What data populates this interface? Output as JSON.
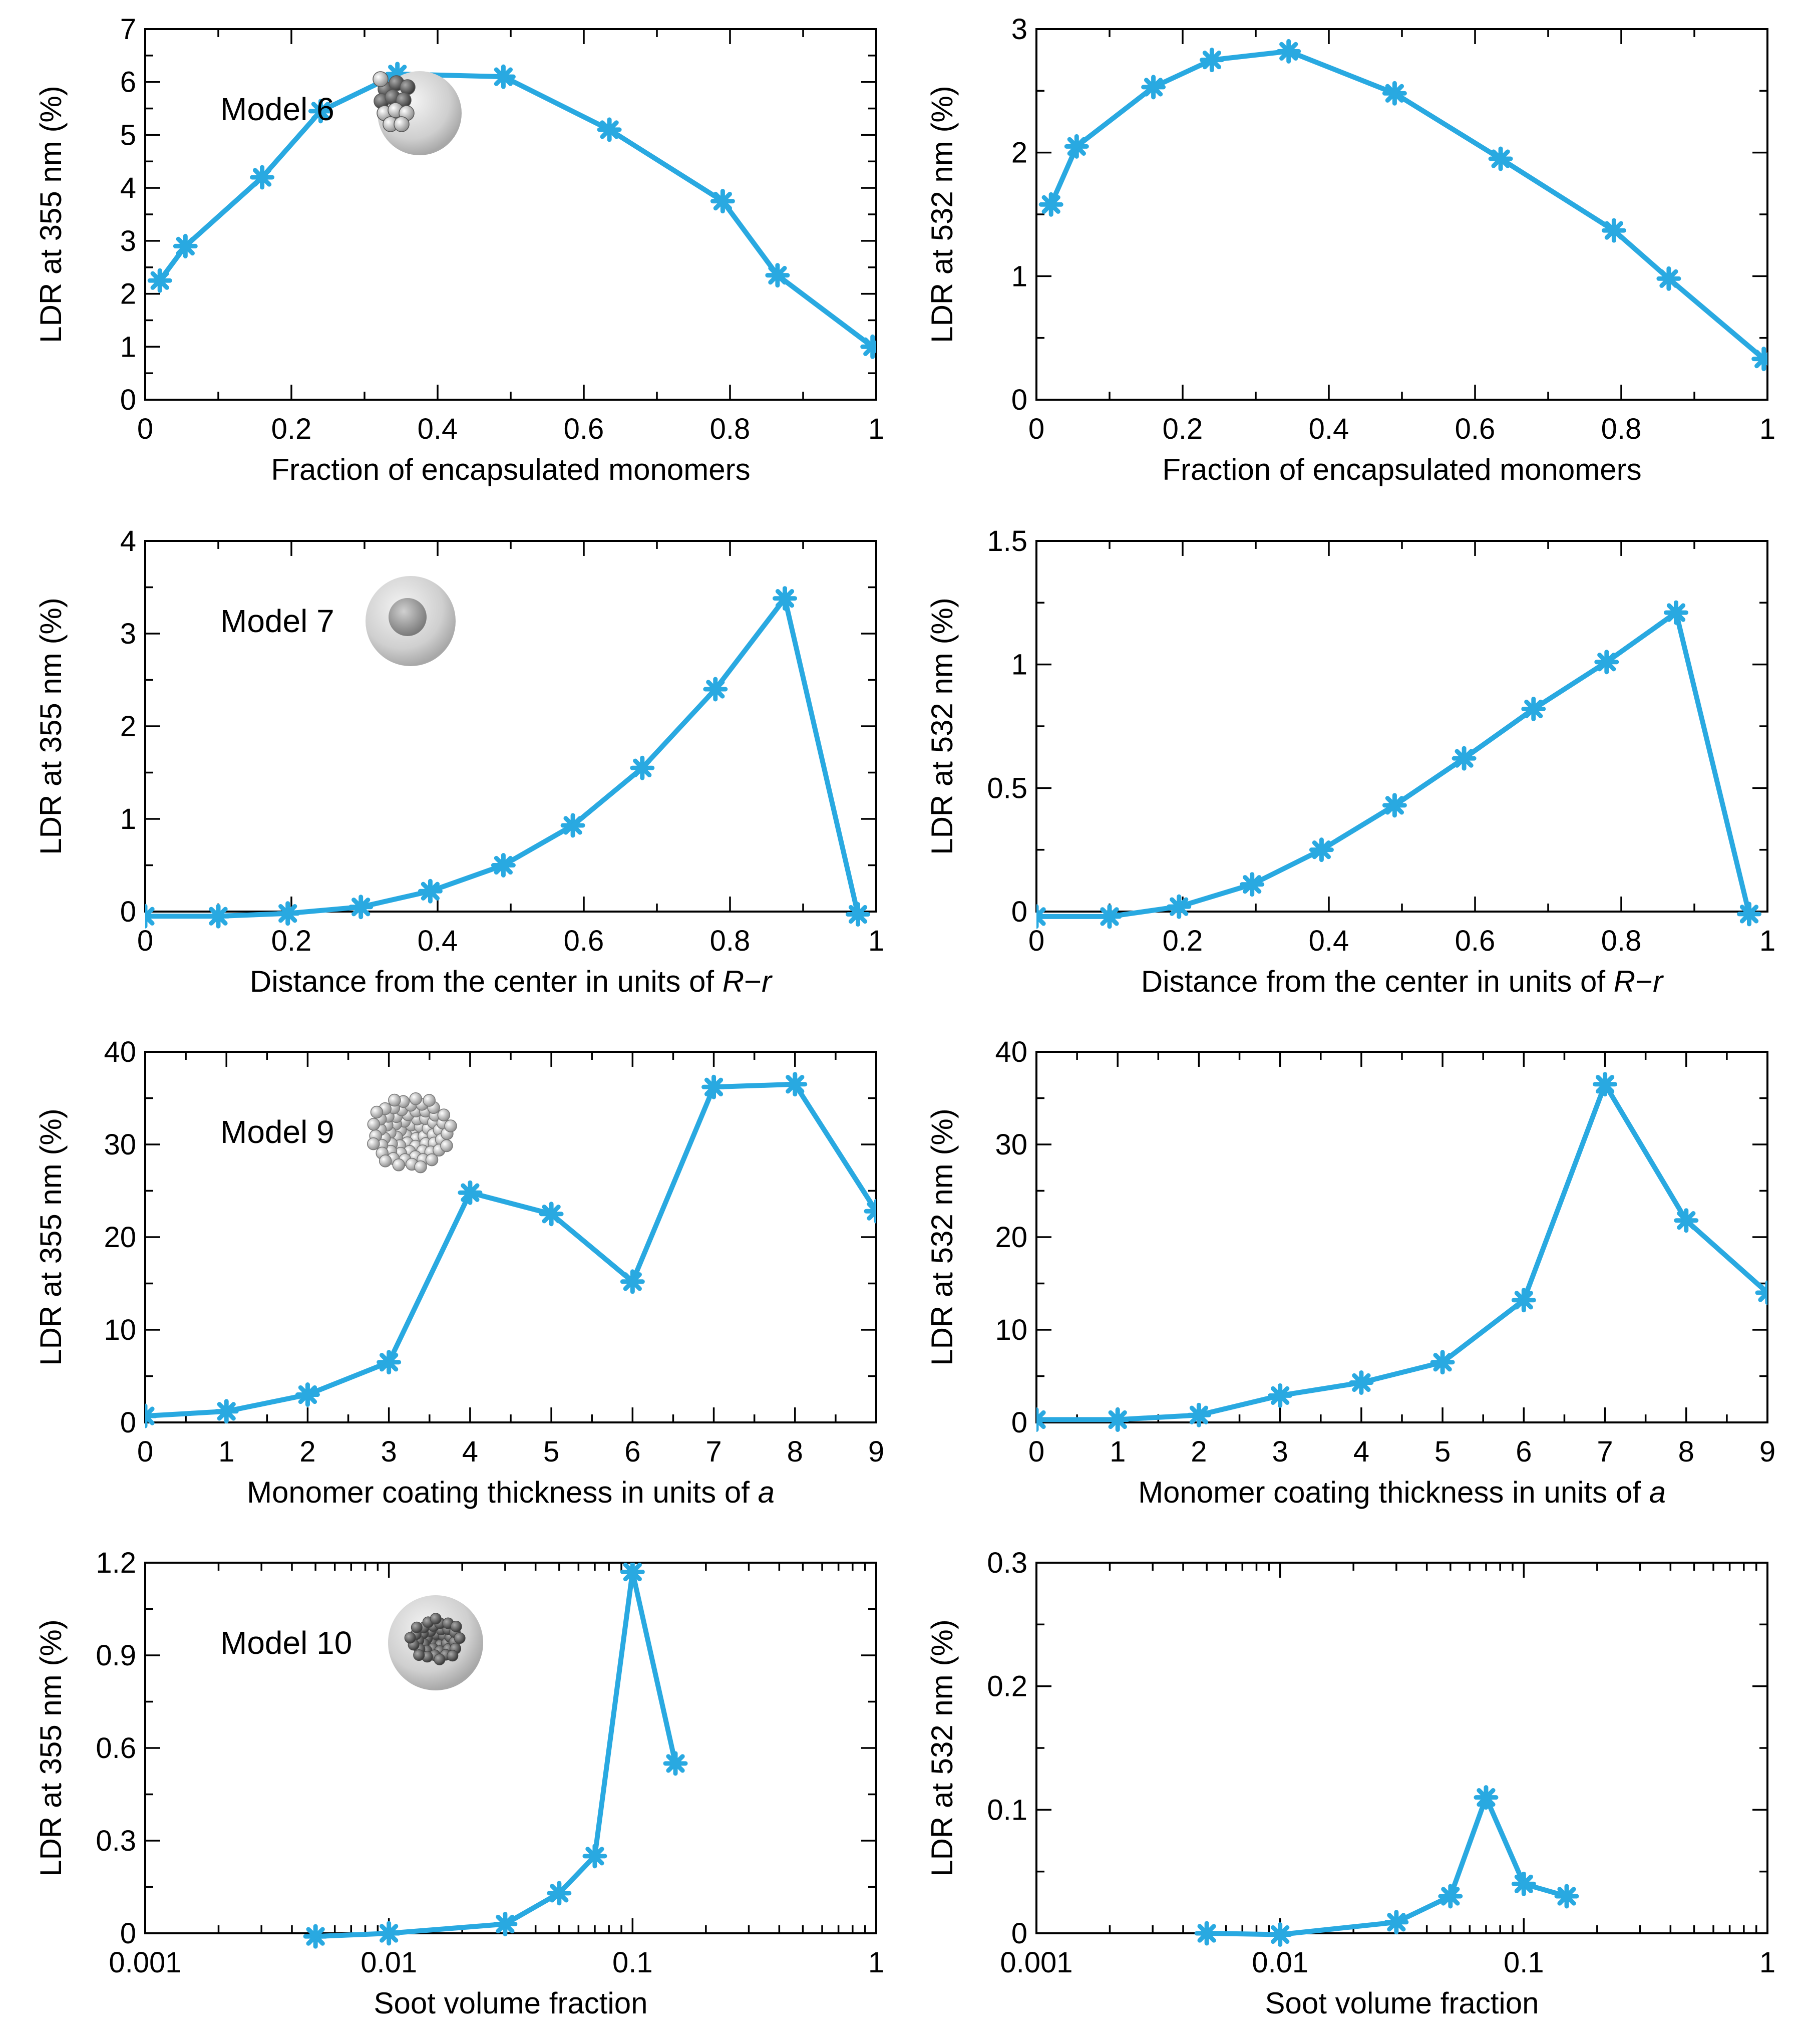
{
  "series_color": "#29a9e1",
  "chart_data": [
    {
      "type": "line",
      "panel": "row1-left",
      "xlabel": "Fraction of encapsulated monomers",
      "ylabel": "LDR at 355 nm (%)",
      "xscale": "linear",
      "xlim": [
        0,
        1
      ],
      "ylim": [
        0,
        7
      ],
      "xticks": [
        0,
        0.2,
        0.4,
        0.6,
        0.8,
        1
      ],
      "xticklabels": [
        "0",
        "0.2",
        "0.4",
        "0.6",
        "0.8",
        "1"
      ],
      "yticks": [
        0,
        1,
        2,
        3,
        4,
        5,
        6,
        7
      ],
      "yticklabels": [
        "0",
        "1",
        "2",
        "3",
        "4",
        "5",
        "6",
        "7"
      ],
      "model_label": "Model 6",
      "model_icon": "partially-encapsulated-sphere-icon",
      "x": [
        0.02,
        0.055,
        0.16,
        0.24,
        0.345,
        0.49,
        0.635,
        0.79,
        0.865,
        0.995
      ],
      "y": [
        2.25,
        2.9,
        4.2,
        5.45,
        6.15,
        6.1,
        5.1,
        3.75,
        2.35,
        1.0
      ]
    },
    {
      "type": "line",
      "panel": "row1-right",
      "xlabel": "Fraction of encapsulated monomers",
      "ylabel": "LDR at 532 nm (%)",
      "xscale": "linear",
      "xlim": [
        0,
        1
      ],
      "ylim": [
        0,
        3
      ],
      "xticks": [
        0,
        0.2,
        0.4,
        0.6,
        0.8,
        1
      ],
      "xticklabels": [
        "0",
        "0.2",
        "0.4",
        "0.6",
        "0.8",
        "1"
      ],
      "yticks": [
        0,
        1,
        2,
        3
      ],
      "yticklabels": [
        "0",
        "1",
        "2",
        "3"
      ],
      "x": [
        0.02,
        0.055,
        0.16,
        0.24,
        0.345,
        0.49,
        0.635,
        0.79,
        0.865,
        0.995
      ],
      "y": [
        1.58,
        2.05,
        2.53,
        2.75,
        2.82,
        2.48,
        1.95,
        1.37,
        0.98,
        0.33
      ]
    },
    {
      "type": "line",
      "panel": "row2-left",
      "xlabel": "Distance from the center in units of ",
      "xlabel_italic": "R",
      "xlabel_op": "−",
      "xlabel_italic2": "r",
      "ylabel": "LDR at 355 nm (%)",
      "xscale": "linear",
      "xlim": [
        0,
        1
      ],
      "ylim": [
        0,
        4
      ],
      "xticks": [
        0,
        0.2,
        0.4,
        0.6,
        0.8,
        1
      ],
      "xticklabels": [
        "0",
        "0.2",
        "0.4",
        "0.6",
        "0.8",
        "1"
      ],
      "yticks": [
        0,
        1,
        2,
        3,
        4
      ],
      "yticklabels": [
        "0",
        "1",
        "2",
        "3",
        "4"
      ],
      "model_label": "Model 7",
      "model_icon": "core-shell-sphere-icon",
      "x": [
        0,
        0.1,
        0.195,
        0.295,
        0.39,
        0.49,
        0.585,
        0.68,
        0.78,
        0.875,
        0.975
      ],
      "y": [
        -0.05,
        -0.05,
        -0.02,
        0.05,
        0.22,
        0.5,
        0.93,
        1.55,
        2.4,
        3.38,
        -0.03
      ]
    },
    {
      "type": "line",
      "panel": "row2-right",
      "xlabel": "Distance from the center in units of ",
      "xlabel_italic": "R",
      "xlabel_op": "−",
      "xlabel_italic2": "r",
      "ylabel": "LDR at 532 nm (%)",
      "xscale": "linear",
      "xlim": [
        0,
        1
      ],
      "ylim": [
        0,
        1.5
      ],
      "xticks": [
        0,
        0.2,
        0.4,
        0.6,
        0.8,
        1
      ],
      "xticklabels": [
        "0",
        "0.2",
        "0.4",
        "0.6",
        "0.8",
        "1"
      ],
      "yticks": [
        0,
        0.5,
        1,
        1.5
      ],
      "yticklabels": [
        "0",
        "0.5",
        "1",
        "1.5"
      ],
      "x": [
        0,
        0.1,
        0.195,
        0.295,
        0.39,
        0.49,
        0.585,
        0.68,
        0.78,
        0.875,
        0.975
      ],
      "y": [
        -0.02,
        -0.02,
        0.02,
        0.11,
        0.25,
        0.43,
        0.62,
        0.82,
        1.01,
        1.21,
        -0.01
      ]
    },
    {
      "type": "line",
      "panel": "row3-left",
      "xlabel": "Monomer coating thickness in units of ",
      "xlabel_italic": "a",
      "ylabel": "LDR at 355 nm (%)",
      "xscale": "linear",
      "xlim": [
        0,
        9
      ],
      "ylim": [
        0,
        40
      ],
      "xticks": [
        0,
        1,
        2,
        3,
        4,
        5,
        6,
        7,
        8,
        9
      ],
      "xticklabels": [
        "0",
        "1",
        "2",
        "3",
        "4",
        "5",
        "6",
        "7",
        "8",
        "9"
      ],
      "yticks": [
        0,
        10,
        20,
        30,
        40
      ],
      "yticklabels": [
        "0",
        "10",
        "20",
        "30",
        "40"
      ],
      "model_label": "Model 9",
      "model_icon": "coated-monomer-cluster-icon",
      "x": [
        0,
        1,
        2,
        3,
        4,
        5,
        6,
        7,
        8,
        9
      ],
      "y": [
        0.7,
        1.2,
        3.0,
        6.5,
        24.8,
        22.5,
        15.2,
        36.2,
        36.5,
        22.8
      ]
    },
    {
      "type": "line",
      "panel": "row3-right",
      "xlabel": "Monomer coating thickness in units of ",
      "xlabel_italic": "a",
      "ylabel": "LDR at 532 nm (%)",
      "xscale": "linear",
      "xlim": [
        0,
        9
      ],
      "ylim": [
        0,
        40
      ],
      "xticks": [
        0,
        1,
        2,
        3,
        4,
        5,
        6,
        7,
        8,
        9
      ],
      "xticklabels": [
        "0",
        "1",
        "2",
        "3",
        "4",
        "5",
        "6",
        "7",
        "8",
        "9"
      ],
      "yticks": [
        0,
        10,
        20,
        30,
        40
      ],
      "yticklabels": [
        "0",
        "10",
        "20",
        "30",
        "40"
      ],
      "x": [
        0,
        1,
        2,
        3,
        4,
        5,
        6,
        7,
        8,
        9
      ],
      "y": [
        0.3,
        0.3,
        0.8,
        2.9,
        4.3,
        6.5,
        13.2,
        36.5,
        21.8,
        14.0
      ]
    },
    {
      "type": "line",
      "panel": "row4-left",
      "xlabel": "Soot volume fraction",
      "ylabel": "LDR at 355 nm (%)",
      "xscale": "log",
      "xlim": [
        0.001,
        1
      ],
      "ylim": [
        0,
        1.2
      ],
      "xticks": [
        0.001,
        0.01,
        0.1,
        1
      ],
      "xticklabels": [
        "0.001",
        "0.01",
        "0.1",
        "1"
      ],
      "yticks": [
        0,
        0.3,
        0.6,
        0.9,
        1.2
      ],
      "yticklabels": [
        "0",
        "0.3",
        "0.6",
        "0.9",
        "1.2"
      ],
      "model_label": "Model 10",
      "model_icon": "soot-inside-sphere-icon",
      "x": [
        0.005,
        0.01,
        0.03,
        0.05,
        0.07,
        0.1,
        0.15
      ],
      "y": [
        -0.01,
        0.0,
        0.03,
        0.13,
        0.25,
        1.17,
        0.55
      ]
    },
    {
      "type": "line",
      "panel": "row4-right",
      "xlabel": "Soot volume fraction",
      "ylabel": "LDR at 532 nm (%)",
      "xscale": "log",
      "xlim": [
        0.001,
        1
      ],
      "ylim": [
        0,
        0.3
      ],
      "xticks": [
        0.001,
        0.01,
        0.1,
        1
      ],
      "xticklabels": [
        "0.001",
        "0.01",
        "0.1",
        "1"
      ],
      "yticks": [
        0,
        0.1,
        0.2,
        0.3
      ],
      "yticklabels": [
        "0",
        "0.1",
        "0.2",
        "0.3"
      ],
      "x": [
        0.005,
        0.01,
        0.03,
        0.05,
        0.07,
        0.1,
        0.15
      ],
      "y": [
        0.0,
        -0.001,
        0.009,
        0.03,
        0.11,
        0.04,
        0.03
      ]
    }
  ]
}
